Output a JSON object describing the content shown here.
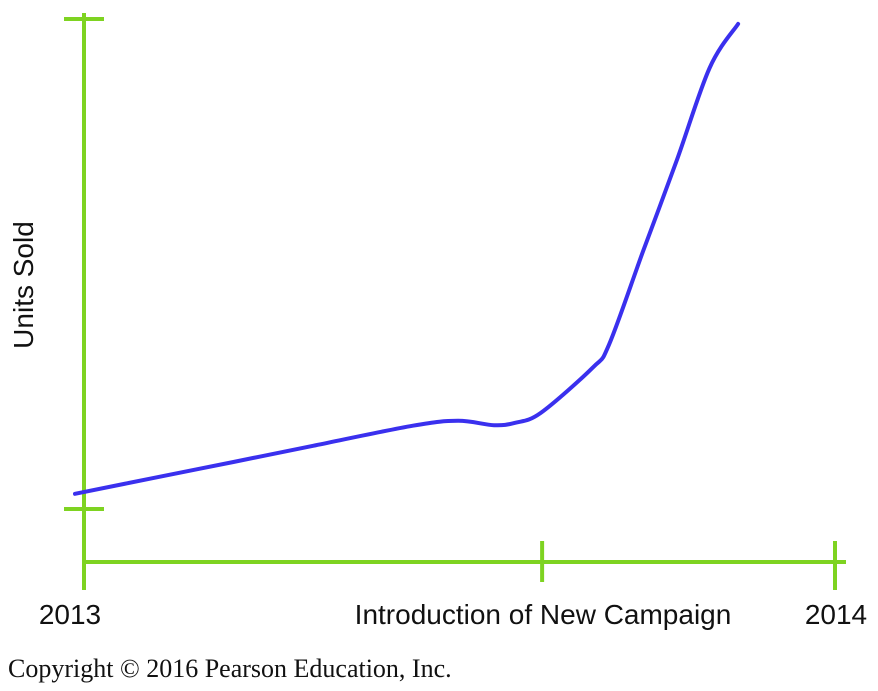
{
  "chart_data": {
    "type": "line",
    "title": "",
    "ylabel": "Units Sold",
    "xlabel": "",
    "x_ticks": [
      {
        "position": 0.0,
        "label": "2013"
      },
      {
        "position": 0.61,
        "label": "Introduction of New Campaign"
      },
      {
        "position": 1.0,
        "label": "2014"
      }
    ],
    "y_ticks": [
      {
        "value": 0,
        "label": ""
      },
      {
        "value": 100,
        "label": ""
      }
    ],
    "series": [
      {
        "name": "Units Sold",
        "color": "#3a30ee",
        "x": [
          -0.012,
          0.092,
          0.199,
          0.305,
          0.438,
          0.498,
          0.546,
          0.574,
          0.608,
          0.677,
          0.699,
          0.744,
          0.789,
          0.833,
          0.871
        ],
        "y": [
          3.1,
          6.3,
          9.6,
          12.9,
          17.0,
          18.0,
          17.1,
          17.6,
          19.6,
          28.8,
          33.5,
          52.4,
          71.0,
          90.0,
          99.0
        ]
      }
    ],
    "xlim": [
      0,
      1
    ],
    "ylim": [
      0,
      100
    ],
    "grid": false,
    "legend": "none"
  },
  "copyright": "Copyright © 2016 Pearson Education, Inc."
}
